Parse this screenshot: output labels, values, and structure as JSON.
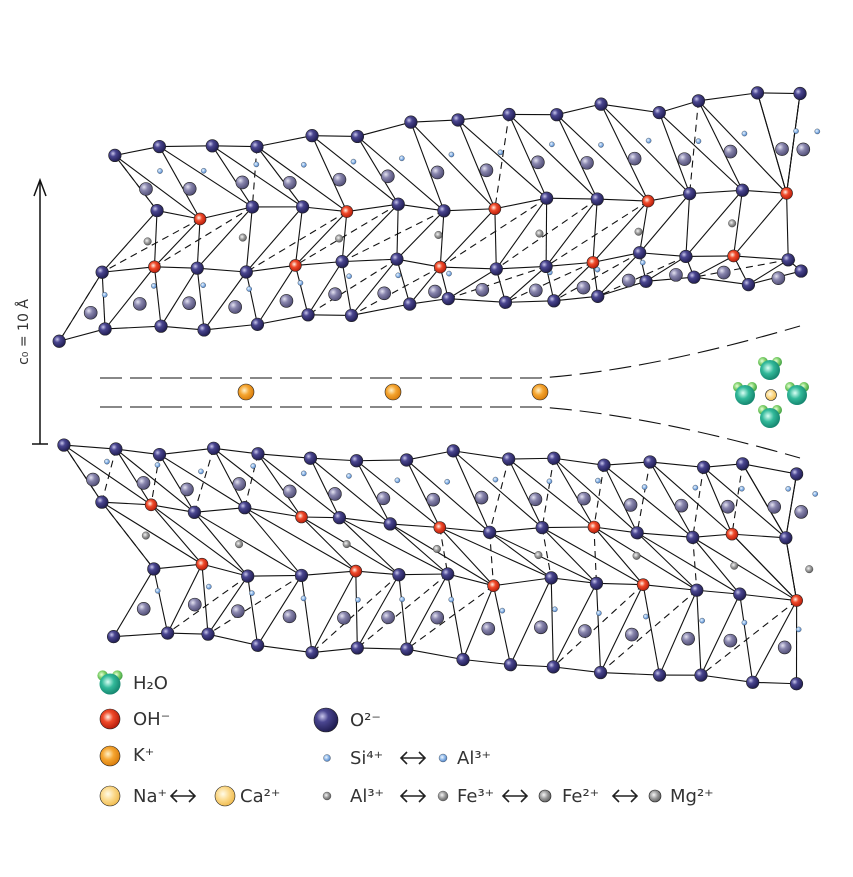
{
  "axis_label": "c₀ = 10 Å",
  "legend": {
    "h2o": "H₂O",
    "oh": "OH⁻",
    "k": "K⁺",
    "na": "Na⁺",
    "ca": "Ca²⁺",
    "o": "O²⁻",
    "si": "Si⁴⁺",
    "al_tet": "Al³⁺",
    "al_oct": "Al³⁺",
    "fe3": "Fe³⁺",
    "fe2": "Fe²⁺",
    "mg": "Mg²⁺"
  }
}
